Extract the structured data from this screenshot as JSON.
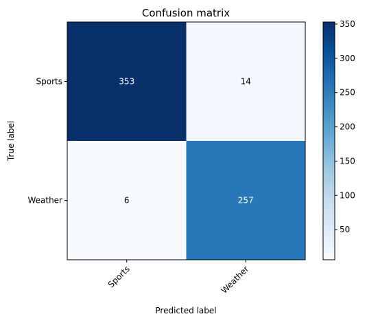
{
  "chart_data": {
    "type": "heatmap",
    "title": "Confusion matrix",
    "xlabel": "Predicted label",
    "ylabel": "True label",
    "x_categories": [
      "Sports",
      "Weather"
    ],
    "y_categories": [
      "Sports",
      "Weather"
    ],
    "values": [
      [
        353,
        14
      ],
      [
        6,
        257
      ]
    ],
    "colormap": "Blues",
    "colorbar": {
      "range": [
        6,
        353
      ],
      "ticks": [
        50,
        100,
        150,
        200,
        250,
        300,
        350
      ]
    },
    "colors": {
      "low": "#f7fbff",
      "high": "#08306b",
      "text_light": "#ffffff",
      "text_dark": "#000000"
    }
  }
}
